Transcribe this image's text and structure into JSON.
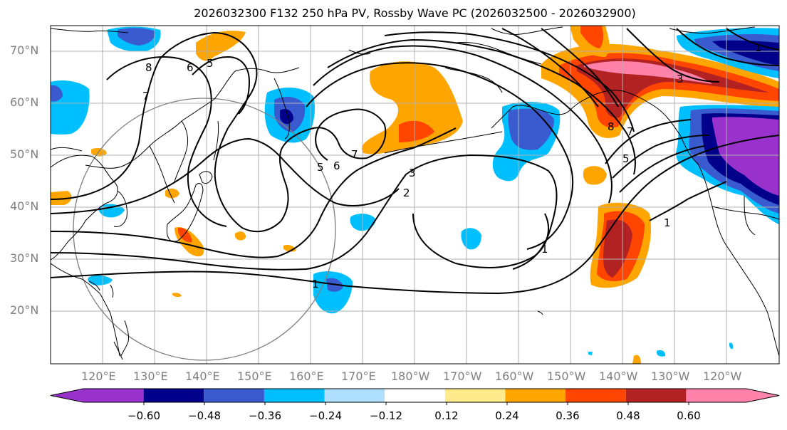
{
  "title": "2026032300 F132 250 hPa PV, Rossby Wave PC (2026032500 - 2026032900)",
  "lat_labels": [
    "70°N",
    "60°N",
    "50°N",
    "40°N",
    "30°N",
    "20°N"
  ],
  "lon_labels": [
    "120°E",
    "130°E",
    "140°E",
    "150°E",
    "160°E",
    "170°E",
    "180°W",
    "170°W",
    "160°W",
    "150°W",
    "140°W",
    "130°W",
    "120°W"
  ],
  "colorbar": {
    "colors": [
      "#9932cc",
      "#00008b",
      "#3a5bd0",
      "#00bfff",
      "#b0e0ff",
      "#ffffff",
      "#ffeb8c",
      "#ffa500",
      "#ff4500",
      "#b22222",
      "#ff82ab"
    ],
    "tick_labels": [
      "−0.60",
      "−0.48",
      "−0.36",
      "−0.24",
      "−0.12",
      "0.12",
      "0.24",
      "0.36",
      "0.48",
      "0.60"
    ]
  },
  "contour_labels": [
    "8",
    "6",
    "5",
    "7",
    "5",
    "6",
    "7",
    "3",
    "2",
    "1",
    "1",
    "5",
    "7",
    "8",
    "3",
    "1",
    "1"
  ],
  "legend_colors": {
    "grid": "#b0b0b0",
    "contour": "#000000",
    "coast": "#000000"
  }
}
